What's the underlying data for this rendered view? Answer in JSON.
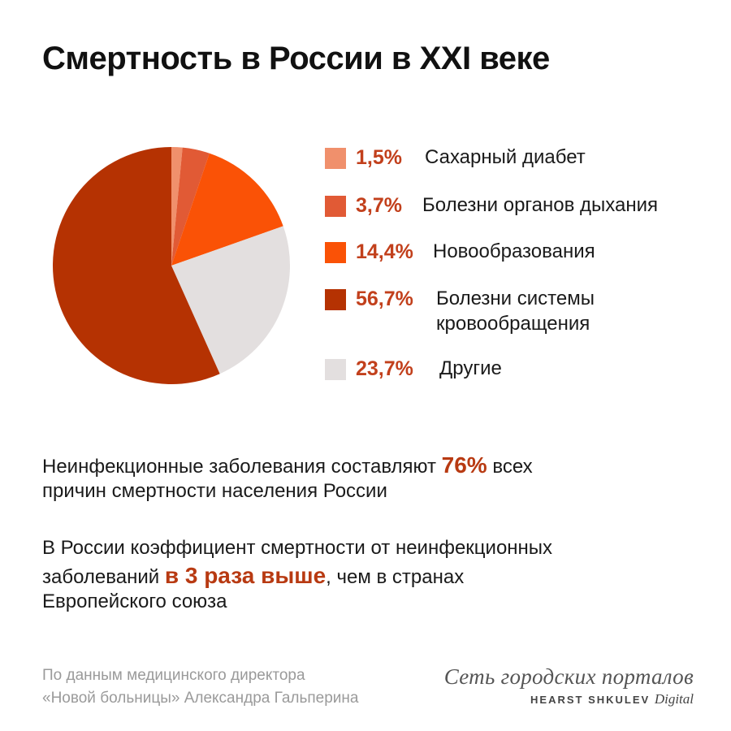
{
  "title": "Смертность в России в XXI веке",
  "chart_data": {
    "type": "pie",
    "start_angle_deg": 0,
    "direction": "clockwise",
    "slices": [
      {
        "label": "Сахарный диабет",
        "value": 1.5,
        "value_label": "1,5%",
        "color": "#f0906c"
      },
      {
        "label": "Болезни органов дыхания",
        "value": 3.7,
        "value_label": "3,7%",
        "color": "#e15a35"
      },
      {
        "label": "Новообразования",
        "value": 14.4,
        "value_label": "14,4%",
        "color": "#fa5206"
      },
      {
        "label": "Другие",
        "value": 23.7,
        "value_label": "23,7%",
        "color": "#e3dfdf"
      },
      {
        "label": "Болезни системы кровообращения",
        "value": 56.7,
        "value_label": "56,7%",
        "color": "#b53202"
      }
    ]
  },
  "legend": [
    {
      "pct": "1,5%",
      "label_lines": [
        "Сахарный диабет"
      ],
      "color": "#f0906c"
    },
    {
      "pct": "3,7%",
      "label_lines": [
        "Болезни органов дыхания"
      ],
      "color": "#e15a35"
    },
    {
      "pct": "14,4%",
      "label_lines": [
        "Новообразования"
      ],
      "color": "#fa5206"
    },
    {
      "pct": "56,7%",
      "label_lines": [
        "Болезни системы",
        "кровообращения"
      ],
      "color": "#b53202"
    },
    {
      "pct": "23,7%",
      "label_lines": [
        "Другие"
      ],
      "color": "#e3dfdf"
    }
  ],
  "notes": {
    "note1": {
      "pre": "Неинфекционные заболевания составляют ",
      "highlight": "76%",
      "post": " всех",
      "line2": "причин смертности населения России"
    },
    "note2": {
      "line1": "В России коэффициент смертности от неинфекционных",
      "pre": "заболеваний ",
      "highlight": "в 3 раза выше",
      "post": ", чем в странах",
      "line3": "Европейского союза"
    }
  },
  "source": {
    "line1": "По данным медицинского директора",
    "line2": "«Новой больницы» Александра Гальперина"
  },
  "logo": {
    "top": "Сеть городских порталов",
    "brand": "HEARST SHKULEV",
    "brand_suffix": "Digital"
  }
}
